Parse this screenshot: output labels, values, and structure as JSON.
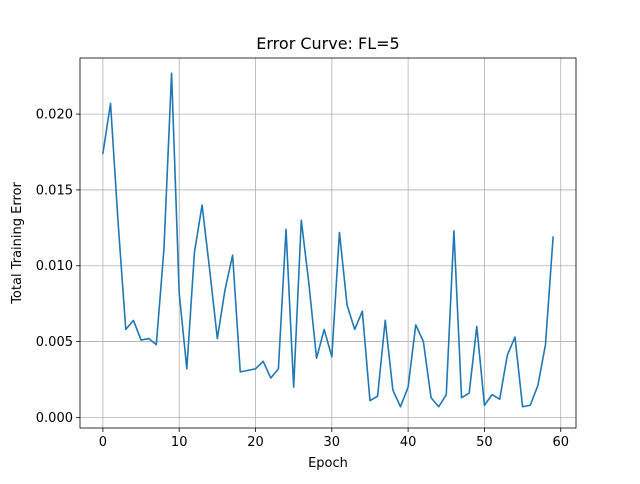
{
  "chart_data": {
    "type": "line",
    "title": "Error Curve: FL=5",
    "xlabel": "Epoch",
    "ylabel": "Total Training Error",
    "xlim": [
      -3,
      62
    ],
    "ylim": [
      -0.0007,
      0.0237
    ],
    "xticks": [
      0,
      10,
      20,
      30,
      40,
      50,
      60
    ],
    "xtick_labels": [
      "0",
      "10",
      "20",
      "30",
      "40",
      "50",
      "60"
    ],
    "yticks": [
      0.0,
      0.005,
      0.01,
      0.015,
      0.02
    ],
    "ytick_labels": [
      "0.000",
      "0.005",
      "0.010",
      "0.015",
      "0.020"
    ],
    "grid": true,
    "series": [
      {
        "name": "Total Training Error",
        "color": "#1f77b4",
        "x": [
          0,
          1,
          2,
          3,
          4,
          5,
          6,
          7,
          8,
          9,
          10,
          11,
          12,
          13,
          14,
          15,
          16,
          17,
          18,
          19,
          20,
          21,
          22,
          23,
          24,
          25,
          26,
          27,
          28,
          29,
          30,
          31,
          32,
          33,
          34,
          35,
          36,
          37,
          38,
          39,
          40,
          41,
          42,
          43,
          44,
          45,
          46,
          47,
          48,
          49,
          50,
          51,
          52,
          53,
          54,
          55,
          56,
          57,
          58,
          59
        ],
        "y": [
          0.0174,
          0.0207,
          0.0128,
          0.0058,
          0.0064,
          0.0051,
          0.0052,
          0.0048,
          0.0111,
          0.0227,
          0.0082,
          0.0032,
          0.0109,
          0.014,
          0.0097,
          0.0052,
          0.0084,
          0.0107,
          0.003,
          0.0031,
          0.0032,
          0.0037,
          0.0026,
          0.0032,
          0.0124,
          0.002,
          0.013,
          0.0088,
          0.0039,
          0.0058,
          0.004,
          0.0122,
          0.0074,
          0.0058,
          0.007,
          0.0011,
          0.0014,
          0.0064,
          0.0018,
          0.0007,
          0.002,
          0.0061,
          0.005,
          0.0013,
          0.0007,
          0.0015,
          0.0123,
          0.0013,
          0.0016,
          0.006,
          0.0008,
          0.0015,
          0.0012,
          0.0041,
          0.0053,
          0.0007,
          0.0008,
          0.0021,
          0.0048,
          0.0119
        ]
      }
    ]
  }
}
